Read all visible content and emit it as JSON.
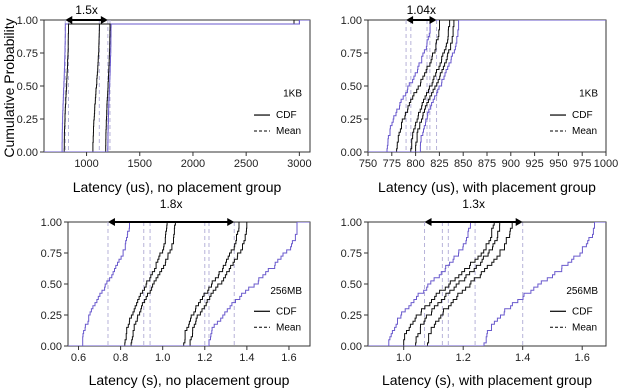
{
  "figure": {
    "ylabel": "Cumulative Probability",
    "colors": {
      "black_series": "#111111",
      "purple_series": "#6a5acd",
      "mean_line": "#b7b3d9"
    }
  },
  "chart_data": [
    {
      "type": "line",
      "xlabel": "Latency (us), no placement group",
      "xlim": [
        600,
        3100
      ],
      "xticks": [
        1000,
        1500,
        2000,
        2500,
        3000
      ],
      "xtick_labels": [
        "1000",
        "1500",
        "2000",
        "2500",
        "3000"
      ],
      "ylim": [
        0,
        1
      ],
      "yticks": [
        0,
        0.25,
        0.5,
        0.75,
        1.0
      ],
      "ytick_labels": [
        "0.00",
        "0.25",
        "0.50",
        "0.75",
        "1.00"
      ],
      "size_label": "1KB",
      "legend": {
        "position": "right",
        "cdf_label": "CDF",
        "mean_label": "Mean"
      },
      "annotation": {
        "text": "1.5x",
        "x_from": 800,
        "x_to": 1200
      },
      "series": [
        {
          "color": "purple",
          "lo": 770,
          "hi": 800,
          "tail_x": 3000,
          "tail_y": 0.97,
          "mean": 800
        },
        {
          "color": "black",
          "lo": 790,
          "hi": 830,
          "tail_x": 2950,
          "tail_y": 0.97,
          "mean": 830
        },
        {
          "color": "black",
          "lo": 1060,
          "hi": 1120,
          "tail_x": 2950,
          "tail_y": 0.97,
          "mean": 1120
        },
        {
          "color": "black",
          "lo": 1180,
          "hi": 1220,
          "tail_x": 2950,
          "tail_y": 0.97,
          "mean": 1220
        },
        {
          "color": "purple",
          "lo": 1200,
          "hi": 1230,
          "tail_x": 3000,
          "tail_y": 0.97,
          "mean": 1200
        }
      ]
    },
    {
      "type": "line",
      "xlabel": "Latency (us), with placement group",
      "xlim": [
        750,
        1000
      ],
      "xticks": [
        750,
        775,
        800,
        825,
        850,
        875,
        900,
        925,
        950,
        975,
        1000
      ],
      "xtick_labels": [
        "750",
        "775",
        "800",
        "825",
        "850",
        "875",
        "900",
        "925",
        "950",
        "975",
        "1000"
      ],
      "ylim": [
        0,
        1
      ],
      "yticks": [
        0,
        0.25,
        0.5,
        0.75,
        1.0
      ],
      "ytick_labels": [
        "0.00",
        "0.25",
        "0.50",
        "0.75",
        "1.00"
      ],
      "size_label": "1KB",
      "legend": {
        "position": "right",
        "cdf_label": "CDF",
        "mean_label": "Mean"
      },
      "annotation": {
        "text": "1.04x",
        "x_from": 790,
        "x_to": 822
      },
      "series": [
        {
          "color": "purple",
          "lo": 770,
          "hi": 815,
          "tail_x": 1000,
          "tail_y": 1.0,
          "mean": 790
        },
        {
          "color": "black",
          "lo": 780,
          "hi": 825,
          "tail_x": 990,
          "tail_y": 1.0,
          "mean": 795
        },
        {
          "color": "black",
          "lo": 795,
          "hi": 835,
          "tail_x": 990,
          "tail_y": 1.0,
          "mean": 812
        },
        {
          "color": "black",
          "lo": 800,
          "hi": 840,
          "tail_x": 990,
          "tail_y": 1.0,
          "mean": 815
        },
        {
          "color": "purple",
          "lo": 805,
          "hi": 845,
          "tail_x": 1000,
          "tail_y": 1.0,
          "mean": 822
        }
      ]
    },
    {
      "type": "line",
      "xlabel": "Latency (s), no placement group",
      "xlim": [
        0.55,
        1.7
      ],
      "xticks": [
        0.6,
        0.8,
        1.0,
        1.2,
        1.4,
        1.6
      ],
      "xtick_labels": [
        "0.6",
        "0.8",
        "1.0",
        "1.2",
        "1.4",
        "1.6"
      ],
      "ylim": [
        0,
        1
      ],
      "yticks": [
        0,
        0.25,
        0.5,
        0.75,
        1.0
      ],
      "ytick_labels": [
        "0.00",
        "0.25",
        "0.50",
        "0.75",
        "1.00"
      ],
      "size_label": "256MB",
      "legend": {
        "position": "right",
        "cdf_label": "CDF",
        "mean_label": "Mean"
      },
      "annotation": {
        "text": "1.8x",
        "x_from": 0.74,
        "x_to": 1.34
      },
      "series": [
        {
          "color": "purple",
          "lo": 0.62,
          "hi": 0.84,
          "tail_x": 0.84,
          "tail_y": 1.0,
          "mean": 0.74
        },
        {
          "color": "black",
          "lo": 0.82,
          "hi": 1.02,
          "tail_x": 1.02,
          "tail_y": 1.0,
          "mean": 0.91
        },
        {
          "color": "black",
          "lo": 0.85,
          "hi": 1.06,
          "tail_x": 1.06,
          "tail_y": 1.0,
          "mean": 0.94
        },
        {
          "color": "black",
          "lo": 1.1,
          "hi": 1.36,
          "tail_x": 1.36,
          "tail_y": 1.0,
          "mean": 1.2
        },
        {
          "color": "black",
          "lo": 1.13,
          "hi": 1.4,
          "tail_x": 1.4,
          "tail_y": 1.0,
          "mean": 1.22
        },
        {
          "color": "purple",
          "lo": 1.22,
          "hi": 1.64,
          "tail_x": 1.64,
          "tail_y": 1.0,
          "mean": 1.34
        }
      ]
    },
    {
      "type": "line",
      "xlabel": "Latency (s), with placement group",
      "xlim": [
        0.88,
        1.68
      ],
      "xticks": [
        1.0,
        1.2,
        1.4,
        1.6
      ],
      "xtick_labels": [
        "1.0",
        "1.2",
        "1.4",
        "1.6"
      ],
      "ylim": [
        0,
        1
      ],
      "yticks": [
        0,
        0.25,
        0.5,
        0.75,
        1.0
      ],
      "ytick_labels": [
        "0.00",
        "0.25",
        "0.50",
        "0.75",
        "1.00"
      ],
      "size_label": "256MB",
      "legend": {
        "position": "right",
        "cdf_label": "CDF",
        "mean_label": "Mean"
      },
      "annotation": {
        "text": "1.3x",
        "x_from": 1.07,
        "x_to": 1.4
      },
      "series": [
        {
          "color": "purple",
          "lo": 0.95,
          "hi": 1.22,
          "tail_x": 1.22,
          "tail_y": 1.0,
          "mean": 1.07
        },
        {
          "color": "black",
          "lo": 1.0,
          "hi": 1.3,
          "tail_x": 1.3,
          "tail_y": 1.0,
          "mean": 1.13
        },
        {
          "color": "black",
          "lo": 1.04,
          "hi": 1.32,
          "tail_x": 1.32,
          "tail_y": 1.0,
          "mean": 1.15
        },
        {
          "color": "black",
          "lo": 1.08,
          "hi": 1.36,
          "tail_x": 1.36,
          "tail_y": 1.0,
          "mean": 1.24
        },
        {
          "color": "purple",
          "lo": 1.27,
          "hi": 1.64,
          "tail_x": 1.64,
          "tail_y": 1.0,
          "mean": 1.4
        }
      ]
    }
  ]
}
